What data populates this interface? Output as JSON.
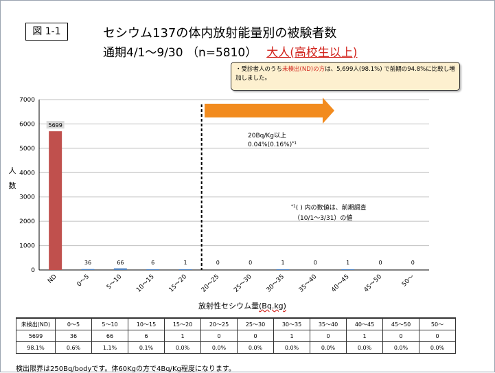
{
  "figure_label": "図 1-1",
  "title_line1": "セシウム137の体内放射能量別の被験者数",
  "title_line2_prefix": "通期4/1～9/30 （n=5810）",
  "title_line2_highlight": "大人(高校生以上)",
  "callout": {
    "bullet": "・",
    "text_a": "受診者人のうち",
    "text_red": "未検出(ND)の方",
    "text_b": "は、5,699人(98.1%) で前期の94.8%に比較し増加しました。"
  },
  "annotation_20bq_line1": "20Bq/Kg以上",
  "annotation_20bq_line2": "0.04%(0.16%)",
  "annotation_20bq_sup": "*1",
  "note_sup": "*1",
  "note_line1": "( ) 内の数値は、前期調査",
  "note_line2": "（10/1～3/31）の値",
  "y_axis_label": "人数",
  "x_axis_label": "放射性セシウム量",
  "x_axis_unit": "(Bq.kg)",
  "chart_data": {
    "type": "bar",
    "categories": [
      "ND",
      "0～5",
      "5～10",
      "10～15",
      "15～20",
      "20～25",
      "25～30",
      "30～35",
      "35～40",
      "40～45",
      "45～50",
      "50～"
    ],
    "values": [
      5699,
      36,
      66,
      6,
      1,
      0,
      0,
      1,
      0,
      1,
      0,
      0
    ],
    "ylim": [
      0,
      7000
    ],
    "yticks": [
      0,
      1000,
      2000,
      3000,
      4000,
      5000,
      6000,
      7000
    ],
    "grid": true,
    "bar_colors": [
      "#c0504d",
      "#4f81bd",
      "#4f81bd",
      "#4f81bd",
      "#4f81bd",
      "#4f81bd",
      "#4f81bd",
      "#4f81bd",
      "#4f81bd",
      "#4f81bd",
      "#4f81bd",
      "#4f81bd"
    ],
    "threshold_category": "20～25"
  },
  "table": {
    "header": [
      "未検出(ND)",
      "0～5",
      "5～10",
      "10～15",
      "15～20",
      "20～25",
      "25～30",
      "30～35",
      "35～40",
      "40～45",
      "45～50",
      "50～"
    ],
    "counts": [
      "5699",
      "36",
      "66",
      "6",
      "1",
      "0",
      "0",
      "1",
      "0",
      "1",
      "0",
      "0"
    ],
    "percents": [
      "98.1%",
      "0.6%",
      "1.1%",
      "0.1%",
      "0.0%",
      "0.0%",
      "0.0%",
      "0.0%",
      "0.0%",
      "0.0%",
      "0.0%",
      "0.0%"
    ]
  },
  "footnote": "検出限界は250Bq/bodyです。体60Kgの方で4Bq/Kg程度になります。",
  "colors": {
    "arrow": "#f28b1e",
    "highlight_red": "#d2231c",
    "callout_bg": "#fdf0cf"
  }
}
